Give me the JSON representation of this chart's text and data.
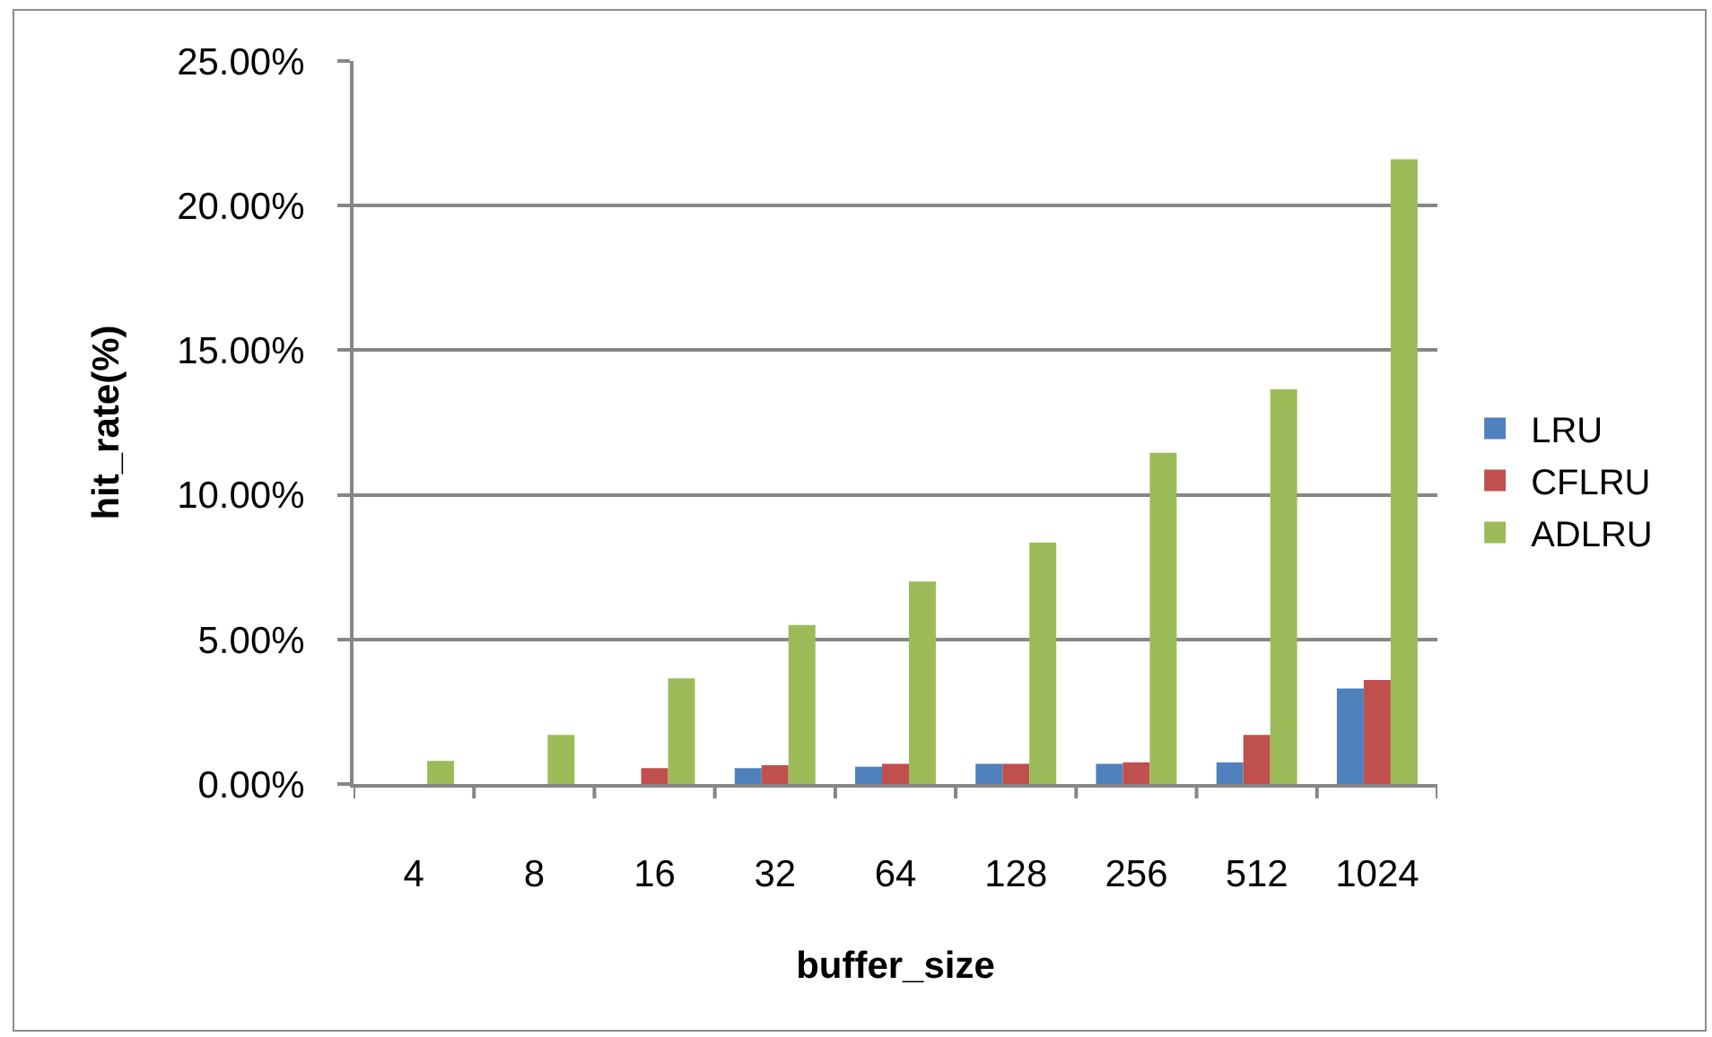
{
  "chart_data": {
    "type": "bar",
    "xlabel": "buffer_size",
    "ylabel": "hit_rate(%)",
    "categories": [
      "4",
      "8",
      "16",
      "32",
      "64",
      "128",
      "256",
      "512",
      "1024"
    ],
    "series": [
      {
        "name": "LRU",
        "color": "#4f81bd",
        "values": [
          null,
          null,
          null,
          0.55,
          0.6,
          0.7,
          0.7,
          0.75,
          3.3
        ]
      },
      {
        "name": "CFLRU",
        "color": "#c0504d",
        "values": [
          null,
          null,
          0.55,
          0.65,
          0.7,
          0.7,
          0.75,
          1.7,
          3.6
        ]
      },
      {
        "name": "ADLRU",
        "color": "#9bbb59",
        "values": [
          0.8,
          1.7,
          3.65,
          5.5,
          7.0,
          8.35,
          11.45,
          13.65,
          21.6
        ]
      }
    ],
    "ylim": [
      0,
      25
    ],
    "yticks": [
      {
        "value": 0,
        "label": "0.00%"
      },
      {
        "value": 5,
        "label": "5.00%"
      },
      {
        "value": 10,
        "label": "10.00%"
      },
      {
        "value": 15,
        "label": "15.00%"
      },
      {
        "value": 20,
        "label": "20.00%"
      },
      {
        "value": 25,
        "label": "25.00%"
      }
    ],
    "grid": "y",
    "legend": "right"
  }
}
